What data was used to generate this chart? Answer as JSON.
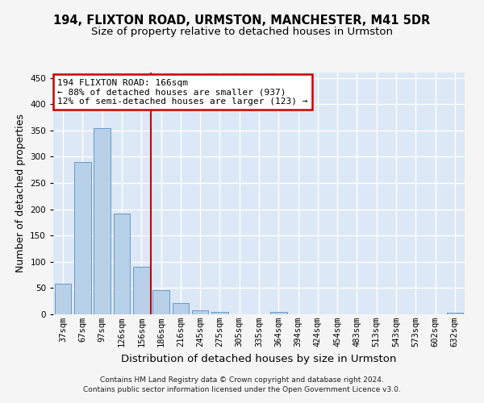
{
  "title": "194, FLIXTON ROAD, URMSTON, MANCHESTER, M41 5DR",
  "subtitle": "Size of property relative to detached houses in Urmston",
  "xlabel": "Distribution of detached houses by size in Urmston",
  "ylabel": "Number of detached properties",
  "categories": [
    "37sqm",
    "67sqm",
    "97sqm",
    "126sqm",
    "156sqm",
    "186sqm",
    "216sqm",
    "245sqm",
    "275sqm",
    "305sqm",
    "335sqm",
    "364sqm",
    "394sqm",
    "424sqm",
    "454sqm",
    "483sqm",
    "513sqm",
    "543sqm",
    "573sqm",
    "602sqm",
    "632sqm"
  ],
  "values": [
    59,
    290,
    354,
    191,
    91,
    46,
    21,
    8,
    4,
    0,
    0,
    4,
    0,
    0,
    0,
    0,
    0,
    0,
    0,
    0,
    3
  ],
  "bar_color": "#b8d0e8",
  "bar_edge_color": "#6699cc",
  "vline_x": 4.5,
  "vline_color": "#cc0000",
  "annotation_text": "194 FLIXTON ROAD: 166sqm\n← 88% of detached houses are smaller (937)\n12% of semi-detached houses are larger (123) →",
  "annotation_box_color": "#ffffff",
  "annotation_box_edge": "#cc0000",
  "ylim": [
    0,
    460
  ],
  "yticks": [
    0,
    50,
    100,
    150,
    200,
    250,
    300,
    350,
    400,
    450
  ],
  "footer": "Contains HM Land Registry data © Crown copyright and database right 2024.\nContains public sector information licensed under the Open Government Licence v3.0.",
  "bg_color": "#dce8f5",
  "grid_color": "#ffffff",
  "fig_bg_color": "#f5f5f5",
  "title_fontsize": 10.5,
  "subtitle_fontsize": 9.5,
  "tick_fontsize": 7.5,
  "ylabel_fontsize": 9,
  "xlabel_fontsize": 9.5,
  "footer_fontsize": 6.5
}
